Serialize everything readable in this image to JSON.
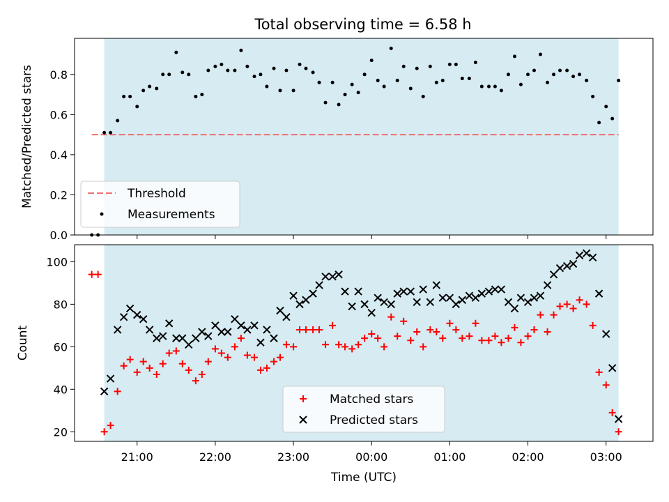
{
  "chart_data": [
    {
      "type": "scatter",
      "title": "Total observing time = 6.58 h",
      "ylabel": "Matched/Predicted stars",
      "xlabel": "",
      "x_unit": "hours (UTC, 24+ means next day)",
      "xlim": [
        20.2,
        27.6
      ],
      "ylim": [
        0.0,
        0.98
      ],
      "yticks": [
        "0.0",
        "0.2",
        "0.4",
        "0.6",
        "0.8"
      ],
      "ytick_values": [
        0.0,
        0.2,
        0.4,
        0.6,
        0.8
      ],
      "observing_window": [
        20.58,
        27.16
      ],
      "legend": {
        "location": "lower-left",
        "entries": [
          "Threshold",
          "Measurements"
        ]
      },
      "threshold": {
        "name": "Threshold",
        "value": 0.5,
        "x_range": [
          20.42,
          27.16
        ],
        "color": "#f07070"
      },
      "measurements": {
        "name": "Measurements",
        "x": [
          20.42,
          20.5,
          20.58,
          20.66,
          20.75,
          20.83,
          20.91,
          21.0,
          21.08,
          21.16,
          21.25,
          21.33,
          21.41,
          21.5,
          21.58,
          21.66,
          21.75,
          21.83,
          21.91,
          22.0,
          22.08,
          22.16,
          22.25,
          22.33,
          22.41,
          22.5,
          22.58,
          22.66,
          22.75,
          22.83,
          22.91,
          23.0,
          23.08,
          23.16,
          23.25,
          23.33,
          23.41,
          23.5,
          23.58,
          23.66,
          23.75,
          23.83,
          23.91,
          24.0,
          24.08,
          24.16,
          24.25,
          24.33,
          24.41,
          24.5,
          24.58,
          24.66,
          24.75,
          24.83,
          24.91,
          25.0,
          25.08,
          25.16,
          25.25,
          25.33,
          25.41,
          25.5,
          25.58,
          25.66,
          25.75,
          25.83,
          25.91,
          26.0,
          26.08,
          26.16,
          26.25,
          26.33,
          26.41,
          26.5,
          26.58,
          26.66,
          26.75,
          26.83,
          26.91,
          27.0,
          27.08,
          27.16
        ],
        "y": [
          0.0,
          0.0,
          0.51,
          0.51,
          0.57,
          0.69,
          0.69,
          0.64,
          0.72,
          0.74,
          0.73,
          0.8,
          0.8,
          0.91,
          0.81,
          0.8,
          0.69,
          0.7,
          0.82,
          0.84,
          0.85,
          0.82,
          0.82,
          0.92,
          0.84,
          0.79,
          0.8,
          0.74,
          0.83,
          0.72,
          0.82,
          0.72,
          0.85,
          0.83,
          0.81,
          0.76,
          0.66,
          0.76,
          0.65,
          0.7,
          0.75,
          0.71,
          0.8,
          0.87,
          0.77,
          0.74,
          0.93,
          0.77,
          0.84,
          0.73,
          0.83,
          0.69,
          0.84,
          0.76,
          0.77,
          0.85,
          0.85,
          0.78,
          0.78,
          0.86,
          0.74,
          0.74,
          0.74,
          0.72,
          0.8,
          0.89,
          0.75,
          0.8,
          0.82,
          0.9,
          0.76,
          0.8,
          0.82,
          0.82,
          0.79,
          0.8,
          0.77,
          0.69,
          0.56,
          0.64,
          0.58,
          0.77
        ],
        "color": "#000000"
      }
    },
    {
      "type": "scatter",
      "title": "",
      "ylabel": "Count",
      "xlabel": "Time (UTC)",
      "xlim": [
        20.2,
        27.6
      ],
      "ylim": [
        15.5,
        108
      ],
      "yticks": [
        "20",
        "40",
        "60",
        "80",
        "100"
      ],
      "ytick_values": [
        20,
        40,
        60,
        80,
        100
      ],
      "xticks": [
        "21:00",
        "22:00",
        "23:00",
        "00:00",
        "01:00",
        "02:00",
        "03:00"
      ],
      "xtick_values": [
        21,
        22,
        23,
        24,
        25,
        26,
        27
      ],
      "observing_window": [
        20.58,
        27.16
      ],
      "legend": {
        "location": "lower-center",
        "entries": [
          "Matched stars",
          "Predicted stars"
        ]
      },
      "series": [
        {
          "name": "Matched stars",
          "marker": "plus",
          "color": "#ff0000",
          "x": [
            20.42,
            20.5,
            20.58,
            20.66,
            20.75,
            20.83,
            20.91,
            21.0,
            21.08,
            21.16,
            21.25,
            21.33,
            21.41,
            21.5,
            21.58,
            21.66,
            21.75,
            21.83,
            21.91,
            22.0,
            22.08,
            22.16,
            22.25,
            22.33,
            22.41,
            22.5,
            22.58,
            22.66,
            22.75,
            22.83,
            22.91,
            23.0,
            23.08,
            23.16,
            23.25,
            23.33,
            23.41,
            23.5,
            23.58,
            23.66,
            23.75,
            23.83,
            23.91,
            24.0,
            24.08,
            24.16,
            24.25,
            24.33,
            24.41,
            24.5,
            24.58,
            24.66,
            24.75,
            24.83,
            24.91,
            25.0,
            25.08,
            25.16,
            25.25,
            25.33,
            25.41,
            25.5,
            25.58,
            25.66,
            25.75,
            25.83,
            25.91,
            26.0,
            26.08,
            26.16,
            26.25,
            26.33,
            26.41,
            26.5,
            26.58,
            26.66,
            26.75,
            26.83,
            26.91,
            27.0,
            27.08,
            27.16
          ],
          "y": [
            94,
            94,
            20,
            23,
            39,
            51,
            54,
            48,
            53,
            50,
            47,
            52,
            57,
            58,
            52,
            49,
            44,
            47,
            53,
            59,
            57,
            55,
            60,
            64,
            56,
            55,
            49,
            50,
            53,
            55,
            61,
            60,
            68,
            68,
            68,
            68,
            61,
            70,
            61,
            60,
            59,
            61,
            64,
            66,
            64,
            60,
            74,
            65,
            72,
            63,
            67,
            60,
            68,
            67,
            64,
            71,
            68,
            64,
            65,
            71,
            63,
            63,
            65,
            62,
            64,
            69,
            62,
            65,
            68,
            75,
            67,
            75,
            79,
            80,
            78,
            82,
            80,
            70,
            48,
            42,
            29,
            20
          ]
        },
        {
          "name": "Predicted stars",
          "marker": "x",
          "color": "#000000",
          "x": [
            20.58,
            20.66,
            20.75,
            20.83,
            20.91,
            21.0,
            21.08,
            21.16,
            21.25,
            21.33,
            21.41,
            21.5,
            21.58,
            21.66,
            21.75,
            21.83,
            21.91,
            22.0,
            22.08,
            22.16,
            22.25,
            22.33,
            22.41,
            22.5,
            22.58,
            22.66,
            22.75,
            22.83,
            22.91,
            23.0,
            23.08,
            23.16,
            23.25,
            23.33,
            23.41,
            23.5,
            23.58,
            23.66,
            23.75,
            23.83,
            23.91,
            24.0,
            24.08,
            24.16,
            24.25,
            24.33,
            24.41,
            24.5,
            24.58,
            24.66,
            24.75,
            24.83,
            24.91,
            25.0,
            25.08,
            25.16,
            25.25,
            25.33,
            25.41,
            25.5,
            25.58,
            25.66,
            25.75,
            25.83,
            25.91,
            26.0,
            26.08,
            26.16,
            26.25,
            26.33,
            26.41,
            26.5,
            26.58,
            26.66,
            26.75,
            26.83,
            26.91,
            27.0,
            27.08,
            27.16
          ],
          "y": [
            39,
            45,
            68,
            74,
            78,
            75,
            73,
            68,
            64,
            65,
            71,
            64,
            64,
            61,
            64,
            67,
            65,
            70,
            67,
            67,
            73,
            70,
            68,
            70,
            62,
            68,
            64,
            77,
            74,
            84,
            80,
            82,
            85,
            89,
            93,
            93,
            94,
            86,
            79,
            86,
            80,
            76,
            83,
            81,
            80,
            85,
            86,
            86,
            81,
            87,
            81,
            89,
            83,
            83,
            80,
            82,
            84,
            83,
            85,
            86,
            87,
            87,
            81,
            78,
            83,
            81,
            83,
            84,
            89,
            94,
            97,
            98,
            99,
            103,
            104,
            102,
            85,
            66,
            50,
            26
          ]
        }
      ]
    }
  ]
}
